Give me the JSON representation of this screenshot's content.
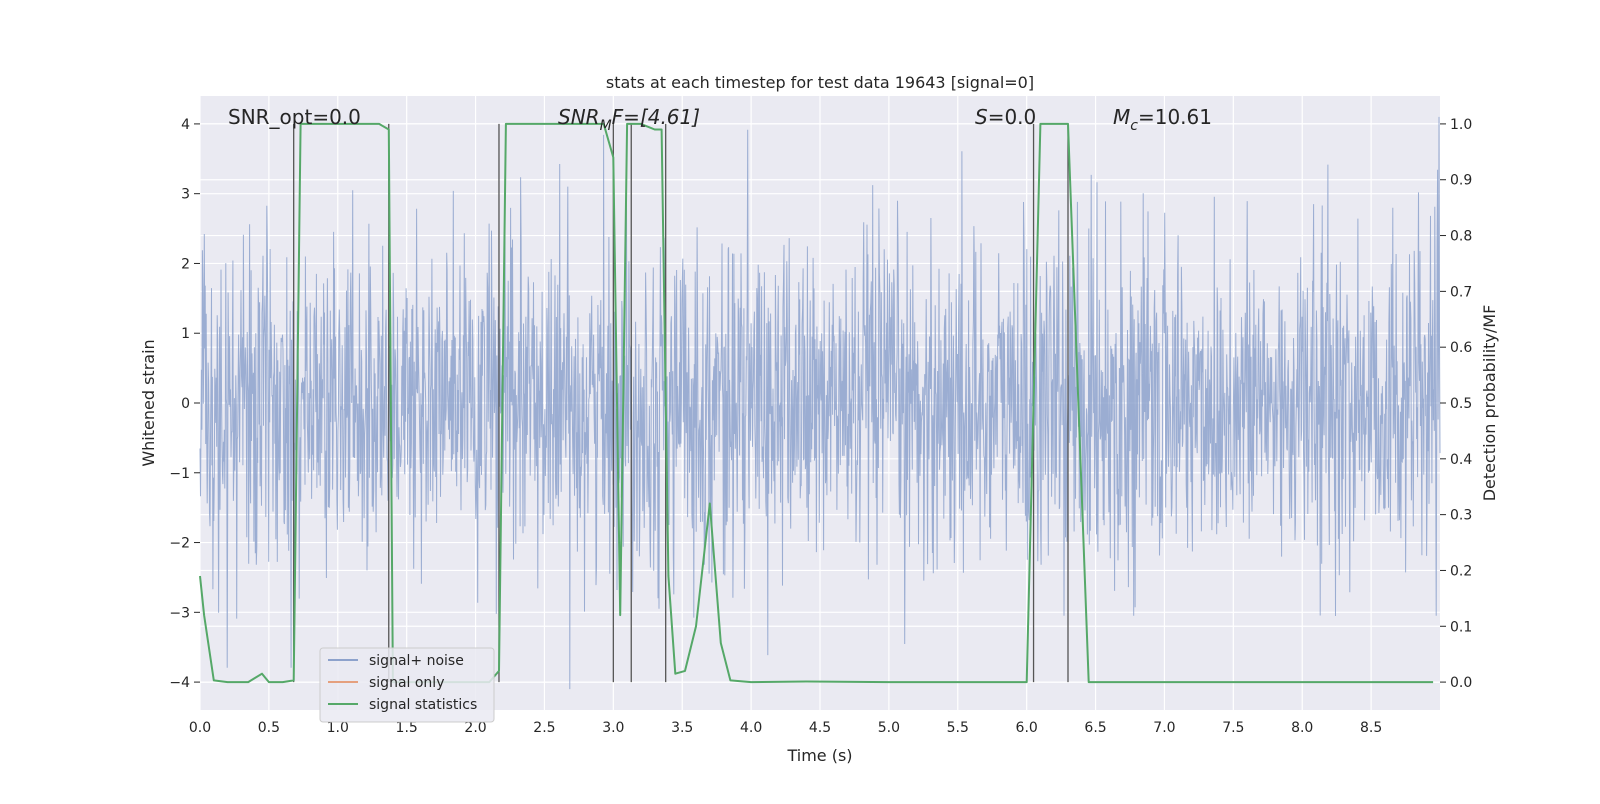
{
  "chart_data": {
    "type": "line",
    "title": "stats at each timestep for test data 19643 [signal=0]",
    "xlabel": "Time (s)",
    "ylabel_left": "Whitened strain",
    "ylabel_right": "Detection probability/MF",
    "xlim": [
      0,
      9
    ],
    "ylim_left": [
      -4.4,
      4.4
    ],
    "ylim_right": [
      -0.05,
      1.05
    ],
    "grid": true,
    "xticks": [
      "0.0",
      "0.5",
      "1.0",
      "1.5",
      "2.0",
      "2.5",
      "3.0",
      "3.5",
      "4.0",
      "4.5",
      "5.0",
      "5.5",
      "6.0",
      "6.5",
      "7.0",
      "7.5",
      "8.0",
      "8.5"
    ],
    "yticks_left": [
      "4",
      "3",
      "2",
      "1",
      "0",
      "−1",
      "−2",
      "−3",
      "−4"
    ],
    "yticks_right": [
      "1.0",
      "0.9",
      "0.8",
      "0.7",
      "0.6",
      "0.5",
      "0.4",
      "0.3",
      "0.2",
      "0.1",
      "0.0"
    ],
    "annotations": {
      "snr_opt": "SNR_opt=0.0",
      "snr_mf_main": "SNR",
      "snr_mf_sub": "M",
      "snr_mf_rest": "F=[4.61]",
      "s_main": "S",
      "s_rest": "=0.0",
      "mc_main": "M",
      "mc_sub": "c",
      "mc_rest": "=10.61"
    },
    "legend_position": "lower-left",
    "series": [
      {
        "name": "signal+ noise",
        "color": "#8da2cc",
        "note_noise_amplitude": "approx ±4"
      },
      {
        "name": "signal only",
        "color": "#e5a07e",
        "values": []
      },
      {
        "name": "signal statistics",
        "color": "#55a868",
        "x": [
          0.0,
          0.03,
          0.1,
          0.2,
          0.3,
          0.35,
          0.45,
          0.5,
          0.6,
          0.68,
          0.73,
          0.75,
          0.9,
          1.0,
          1.1,
          1.3,
          1.37,
          1.4,
          1.45,
          2.0,
          2.1,
          2.17,
          2.22,
          2.3,
          2.5,
          2.8,
          2.93,
          3.0,
          3.05,
          3.1,
          3.2,
          3.3,
          3.35,
          3.4,
          3.45,
          3.52,
          3.6,
          3.7,
          3.78,
          3.85,
          4.0,
          4.4,
          5.0,
          5.5,
          6.0,
          6.1,
          6.15,
          6.3,
          6.45,
          7.0,
          8.0,
          8.95
        ],
        "values": [
          0.19,
          0.12,
          0.003,
          0.0,
          0.0,
          0.0,
          0.015,
          0.0,
          0.0,
          0.003,
          1.0,
          1.0,
          1.0,
          1.0,
          1.0,
          1.0,
          0.99,
          0.0,
          0.0,
          0.0,
          0.0,
          0.02,
          1.0,
          1.0,
          1.0,
          1.0,
          1.0,
          0.94,
          0.12,
          1.0,
          1.0,
          0.99,
          0.99,
          0.19,
          0.015,
          0.02,
          0.1,
          0.32,
          0.07,
          0.003,
          0.0,
          0.001,
          0.0,
          0.0,
          0.0,
          1.0,
          1.0,
          1.0,
          0.0,
          0.0,
          0.0,
          0.0
        ]
      }
    ],
    "vlines": [
      0.68,
      1.37,
      2.17,
      3.0,
      3.13,
      3.38,
      6.05,
      6.3
    ]
  }
}
